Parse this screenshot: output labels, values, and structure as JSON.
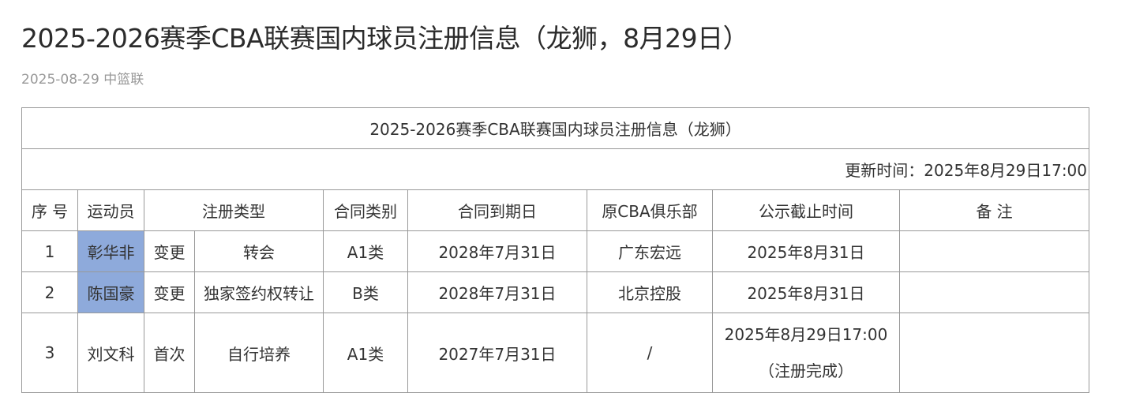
{
  "article": {
    "title": "2025-2026赛季CBA联赛国内球员注册信息（龙狮，8月29日）",
    "date": "2025-08-29",
    "source": "中篮联"
  },
  "table": {
    "caption": "2025-2026赛季CBA联赛国内球员注册信息（龙狮）",
    "updated": "更新时间：2025年8月29日17:00",
    "headers": [
      "序 号",
      "运动员",
      "注册类型",
      "合同类别",
      "合同到期日",
      "原CBA俱乐部",
      "公示截止时间",
      "备 注"
    ],
    "rows": [
      {
        "no": "1",
        "player": "彰华非",
        "reg_kind": "变更",
        "reg_type": "转会",
        "contract": "A1类",
        "expiry": "2028年7月31日",
        "club": "广东宏远",
        "deadline": "2025年8月31日",
        "deadline_note": "",
        "remark": "",
        "highlight": true
      },
      {
        "no": "2",
        "player": "陈国豪",
        "reg_kind": "变更",
        "reg_type": "独家签约权转让",
        "contract": "B类",
        "expiry": "2028年7月31日",
        "club": "北京控股",
        "deadline": "2025年8月31日",
        "deadline_note": "",
        "remark": "",
        "highlight": true
      },
      {
        "no": "3",
        "player": "刘文科",
        "reg_kind": "首次",
        "reg_type": "自行培养",
        "contract": "A1类",
        "expiry": "2027年7月31日",
        "club": "/",
        "deadline": "2025年8月29日17:00",
        "deadline_note": "（注册完成）",
        "remark": "",
        "highlight": false
      }
    ],
    "highlight_color": "#8eaadb"
  }
}
